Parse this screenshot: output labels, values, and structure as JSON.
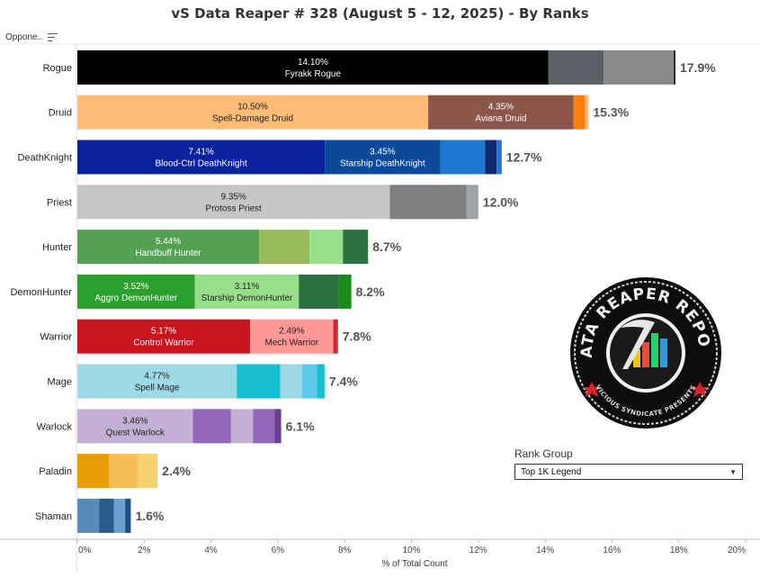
{
  "title": "vS Data Reaper #  328 (August 5 - 12, 2025) - By Ranks",
  "opponent_header": "Oppone..",
  "sort_icon": "sort-lines-icon",
  "rank_group": {
    "title": "Rank Group",
    "selected": "Top 1K Legend",
    "caret_icon": "dropdown-caret-icon"
  },
  "logo": {
    "title": "DATA REAPER REPORT",
    "subtitle": "VICIOUS SYNDICATE PRESENTS"
  },
  "chart_data": {
    "type": "bar",
    "orientation": "horizontal",
    "stacked": true,
    "xlabel": "% of Total Count",
    "xlim": [
      0,
      20
    ],
    "xticks": [
      "0%",
      "2%",
      "4%",
      "6%",
      "8%",
      "10%",
      "12%",
      "14%",
      "16%",
      "18%",
      "20%"
    ],
    "grid": false,
    "rows": [
      {
        "category": "Rogue",
        "total": 17.9,
        "total_label": "17.9%",
        "segments": [
          {
            "value": 14.1,
            "pct": "14.10%",
            "name": "Fyrakk Rogue",
            "color": "#000000",
            "text_color": "#ffffff"
          },
          {
            "value": 1.65,
            "color": "#5b6066"
          },
          {
            "value": 2.1,
            "color": "#8a8a8a"
          },
          {
            "value": 0.05,
            "color": "#1a1a1a"
          }
        ]
      },
      {
        "category": "Druid",
        "total": 15.3,
        "total_label": "15.3%",
        "segments": [
          {
            "value": 10.5,
            "pct": "10.50%",
            "name": "Spell-Damage Druid",
            "color": "#ffbb78",
            "text_color": "#222222"
          },
          {
            "value": 4.35,
            "pct": "4.35%",
            "name": "Aviana Druid",
            "color": "#8c564b",
            "text_color": "#ffffff"
          },
          {
            "value": 0.35,
            "color": "#ff7f0e"
          },
          {
            "value": 0.1,
            "color": "#ffbb78"
          }
        ]
      },
      {
        "category": "DeathKnight",
        "total": 12.7,
        "total_label": "12.7%",
        "segments": [
          {
            "value": 7.41,
            "pct": "7.41%",
            "name": "Blood-Ctrl DeathKnight",
            "color": "#0a239c",
            "text_color": "#ffffff"
          },
          {
            "value": 3.45,
            "pct": "3.45%",
            "name": "Starship DeathKnight",
            "color": "#0b4a9a",
            "text_color": "#ffffff"
          },
          {
            "value": 1.34,
            "color": "#1f77d4"
          },
          {
            "value": 0.35,
            "color": "#0d2a6e"
          },
          {
            "value": 0.15,
            "color": "#2a6fd4"
          }
        ]
      },
      {
        "category": "Priest",
        "total": 12.0,
        "total_label": "12.0%",
        "segments": [
          {
            "value": 9.35,
            "pct": "9.35%",
            "name": "Protoss Priest",
            "color": "#c7c7c7",
            "text_color": "#222222"
          },
          {
            "value": 2.3,
            "color": "#7f7f7f"
          },
          {
            "value": 0.35,
            "color": "#a0a4a8"
          }
        ]
      },
      {
        "category": "Hunter",
        "total": 8.7,
        "total_label": "8.7%",
        "segments": [
          {
            "value": 5.44,
            "pct": "5.44%",
            "name": "Handbuff Hunter",
            "color": "#54a054",
            "text_color": "#ffffff"
          },
          {
            "value": 1.51,
            "color": "#98bb5a"
          },
          {
            "value": 1.0,
            "color": "#98df8a"
          },
          {
            "value": 0.75,
            "color": "#2a7040"
          }
        ]
      },
      {
        "category": "DemonHunter",
        "total": 8.2,
        "total_label": "8.2%",
        "segments": [
          {
            "value": 3.52,
            "pct": "3.52%",
            "name": "Aggro DemonHunter",
            "color": "#2ca02c",
            "text_color": "#ffffff"
          },
          {
            "value": 3.11,
            "pct": "3.11%",
            "name": "Starship DemonHunter",
            "color": "#98df8a",
            "text_color": "#222222"
          },
          {
            "value": 1.2,
            "color": "#2a7040"
          },
          {
            "value": 0.37,
            "color": "#1a8a1a"
          }
        ]
      },
      {
        "category": "Warrior",
        "total": 7.8,
        "total_label": "7.8%",
        "segments": [
          {
            "value": 5.17,
            "pct": "5.17%",
            "name": "Control Warrior",
            "color": "#c8141e",
            "text_color": "#ffffff"
          },
          {
            "value": 2.49,
            "pct": "2.49%",
            "name": "Mech Warrior",
            "color": "#ff9896",
            "text_color": "#222222"
          },
          {
            "value": 0.14,
            "color": "#d62728"
          }
        ]
      },
      {
        "category": "Mage",
        "total": 7.4,
        "total_label": "7.4%",
        "segments": [
          {
            "value": 4.77,
            "pct": "4.77%",
            "name": "Spell Mage",
            "color": "#9edae5",
            "text_color": "#222222"
          },
          {
            "value": 1.3,
            "color": "#17becf"
          },
          {
            "value": 0.65,
            "color": "#9edae5"
          },
          {
            "value": 0.45,
            "color": "#5ec8e8"
          },
          {
            "value": 0.23,
            "color": "#17becf"
          }
        ]
      },
      {
        "category": "Warlock",
        "total": 6.1,
        "total_label": "6.1%",
        "segments": [
          {
            "value": 3.46,
            "pct": "3.46%",
            "name": "Quest Warlock",
            "color": "#c5b0d5",
            "text_color": "#222222"
          },
          {
            "value": 1.14,
            "color": "#9467bd"
          },
          {
            "value": 0.66,
            "color": "#c5b0d5"
          },
          {
            "value": 0.64,
            "color": "#9467bd"
          },
          {
            "value": 0.2,
            "color": "#6a3d9a"
          }
        ]
      },
      {
        "category": "Paladin",
        "total": 2.4,
        "total_label": "2.4%",
        "segments": [
          {
            "value": 0.95,
            "color": "#e89d0a"
          },
          {
            "value": 0.85,
            "color": "#f5bd55"
          },
          {
            "value": 0.6,
            "color": "#f7d070"
          }
        ]
      },
      {
        "category": "Shaman",
        "total": 1.6,
        "total_label": "1.6%",
        "segments": [
          {
            "value": 0.65,
            "color": "#5a8ab8"
          },
          {
            "value": 0.45,
            "color": "#2c5c8c"
          },
          {
            "value": 0.33,
            "color": "#6aa0cf"
          },
          {
            "value": 0.17,
            "color": "#1f4f80"
          }
        ]
      }
    ]
  }
}
